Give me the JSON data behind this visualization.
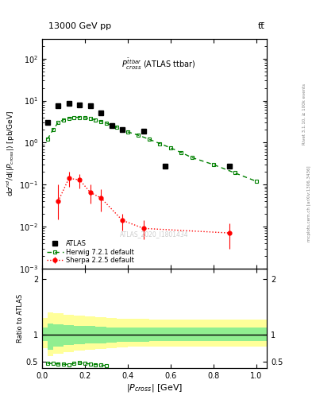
{
  "title_top": "13000 GeV pp",
  "title_right": "tt̅",
  "annotation": "$P^{\\bar{t}tbar}_{cross}$ (ATLAS ttbar)",
  "watermark": "ATLAS_2020_I1801434",
  "right_label": "mcplots.cern.ch [arXiv:1306.3436]",
  "right_label2": "Rivet 3.1.10, ≥ 100k events",
  "ylabel_main": "d$\\sigma^{nd}$/d(|$P_{cross}$|) [pb/GeV]",
  "ylabel_ratio": "Ratio to ATLAS",
  "xlabel": "|$P_{cross}$| [GeV]",
  "xlim": [
    0,
    1.05
  ],
  "ylim_main": [
    0.001,
    300.0
  ],
  "ylim_ratio": [
    0.38,
    2.2
  ],
  "atlas_x": [
    0.025,
    0.075,
    0.125,
    0.175,
    0.225,
    0.275,
    0.325,
    0.375,
    0.475,
    0.575,
    0.875
  ],
  "atlas_y": [
    3.0,
    7.5,
    8.5,
    8.0,
    7.5,
    5.0,
    2.5,
    2.0,
    1.9,
    0.28,
    0.28
  ],
  "herwig_x": [
    0.025,
    0.05,
    0.075,
    0.1,
    0.125,
    0.15,
    0.175,
    0.2,
    0.225,
    0.25,
    0.275,
    0.3,
    0.325,
    0.35,
    0.375,
    0.4,
    0.45,
    0.5,
    0.55,
    0.6,
    0.65,
    0.7,
    0.8,
    0.9,
    1.0
  ],
  "herwig_y": [
    1.2,
    2.0,
    3.0,
    3.5,
    3.8,
    4.0,
    4.0,
    3.9,
    3.7,
    3.5,
    3.2,
    2.9,
    2.6,
    2.3,
    2.0,
    1.8,
    1.5,
    1.2,
    0.95,
    0.75,
    0.58,
    0.44,
    0.3,
    0.19,
    0.12
  ],
  "sherpa_x": [
    0.075,
    0.125,
    0.175,
    0.225,
    0.275,
    0.375,
    0.475,
    0.875
  ],
  "sherpa_y": [
    0.04,
    0.14,
    0.13,
    0.065,
    0.048,
    0.014,
    0.009,
    0.007
  ],
  "sherpa_yerr_lo": [
    0.025,
    0.05,
    0.05,
    0.03,
    0.025,
    0.006,
    0.004,
    0.004
  ],
  "sherpa_yerr_hi": [
    0.06,
    0.06,
    0.05,
    0.035,
    0.03,
    0.006,
    0.005,
    0.005
  ],
  "ratio_herwig_x": [
    0.025,
    0.05,
    0.075,
    0.1,
    0.125,
    0.15,
    0.175,
    0.2,
    0.225,
    0.25,
    0.275,
    0.3
  ],
  "ratio_herwig_y": [
    0.47,
    0.47,
    0.46,
    0.455,
    0.45,
    0.47,
    0.48,
    0.47,
    0.46,
    0.45,
    0.44,
    0.43
  ],
  "band_x_edges": [
    0.0,
    0.025,
    0.05,
    0.1,
    0.15,
    0.2,
    0.25,
    0.3,
    0.35,
    0.4,
    0.5,
    0.6,
    1.05
  ],
  "band_green_lo": [
    0.88,
    0.72,
    0.78,
    0.8,
    0.82,
    0.83,
    0.84,
    0.85,
    0.86,
    0.87,
    0.88,
    0.88,
    0.88
  ],
  "band_green_hi": [
    1.12,
    1.2,
    1.18,
    1.17,
    1.16,
    1.15,
    1.14,
    1.13,
    1.12,
    1.12,
    1.12,
    1.12,
    1.12
  ],
  "band_yellow_lo": [
    0.75,
    0.6,
    0.65,
    0.68,
    0.7,
    0.72,
    0.74,
    0.75,
    0.76,
    0.77,
    0.78,
    0.78,
    0.78
  ],
  "band_yellow_hi": [
    1.3,
    1.4,
    1.38,
    1.36,
    1.34,
    1.32,
    1.31,
    1.3,
    1.29,
    1.28,
    1.27,
    1.27,
    1.27
  ],
  "atlas_color": "black",
  "herwig_color": "#008000",
  "sherpa_color": "red"
}
